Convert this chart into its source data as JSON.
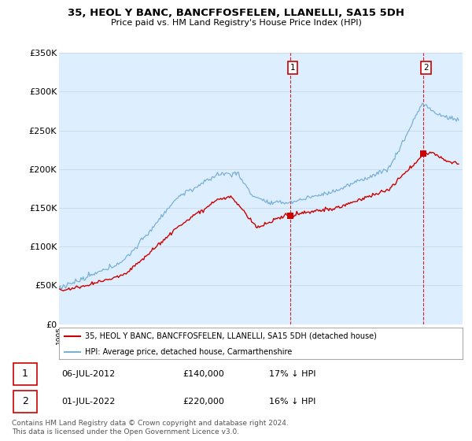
{
  "title": "35, HEOL Y BANC, BANCFFOSFELEN, LLANELLI, SA15 5DH",
  "subtitle": "Price paid vs. HM Land Registry's House Price Index (HPI)",
  "red_label": "35, HEOL Y BANC, BANCFFOSFELEN, LLANELLI, SA15 5DH (detached house)",
  "blue_label": "HPI: Average price, detached house, Carmarthenshire",
  "point1_date": "06-JUL-2012",
  "point1_price": 140000,
  "point1_price_str": "£140,000",
  "point1_hpi_str": "17% ↓ HPI",
  "point1_year": 2012.5,
  "point2_date": "01-JUL-2022",
  "point2_price": 220000,
  "point2_price_str": "£220,000",
  "point2_hpi_str": "16% ↓ HPI",
  "point2_year": 2022.5,
  "footer_line1": "Contains HM Land Registry data © Crown copyright and database right 2024.",
  "footer_line2": "This data is licensed under the Open Government Licence v3.0.",
  "ylim": [
    0,
    350000
  ],
  "yticks": [
    0,
    50000,
    100000,
    150000,
    200000,
    250000,
    300000,
    350000
  ],
  "ytick_labels": [
    "£0",
    "£50K",
    "£100K",
    "£150K",
    "£200K",
    "£250K",
    "£300K",
    "£350K"
  ],
  "xlim_start": 1995,
  "xlim_end": 2025.5,
  "red_color": "#cc0000",
  "blue_color": "#7ab0d4",
  "bg_color": "#ddeeff"
}
